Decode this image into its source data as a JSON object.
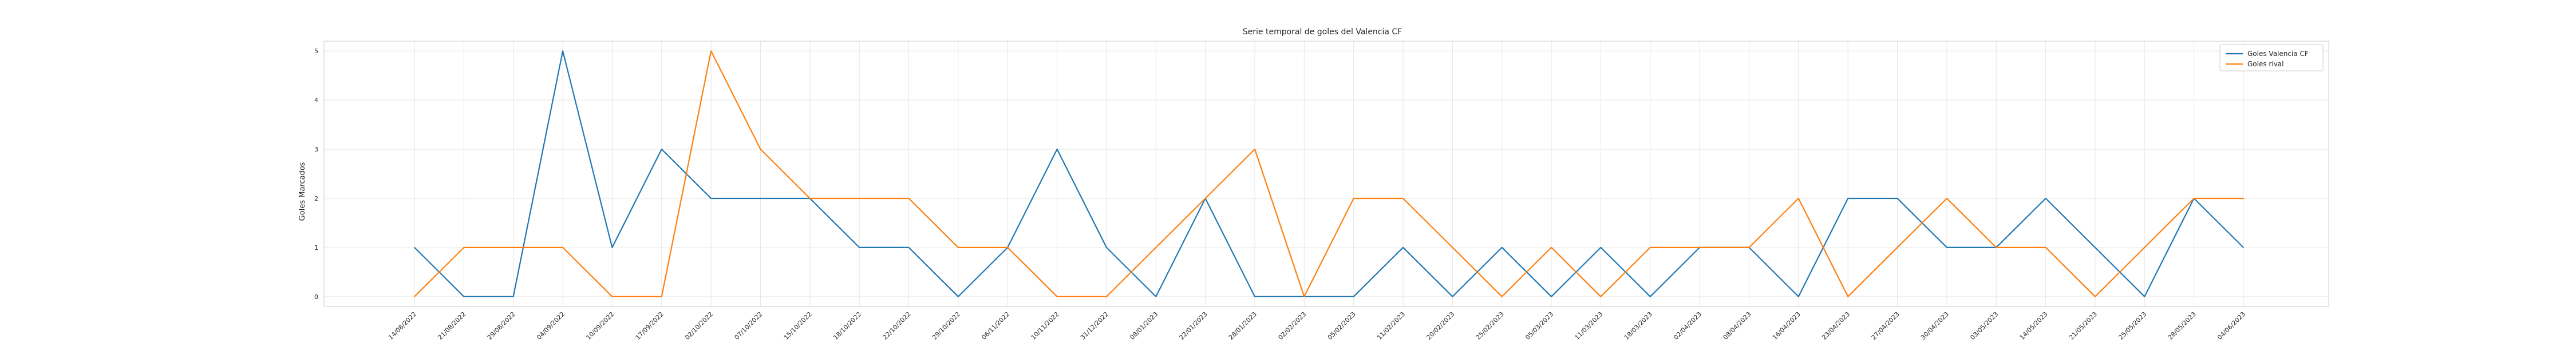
{
  "chart_data": {
    "type": "line",
    "title": "Serie temporal de goles del Valencia CF",
    "xlabel": "",
    "ylabel": "Goles Marcados",
    "ylim": [
      -0.2,
      5.2
    ],
    "yticks": [
      0,
      1,
      2,
      3,
      4,
      5
    ],
    "grid": true,
    "legend_position": "top-right",
    "categories": [
      "14/08/2022",
      "21/08/2022",
      "29/08/2022",
      "04/09/2022",
      "10/09/2022",
      "17/09/2022",
      "02/10/2022",
      "07/10/2022",
      "15/10/2022",
      "18/10/2022",
      "22/10/2022",
      "29/10/2022",
      "06/11/2022",
      "10/11/2022",
      "31/12/2022",
      "08/01/2023",
      "22/01/2023",
      "28/01/2023",
      "02/02/2023",
      "05/02/2023",
      "11/02/2023",
      "20/02/2023",
      "25/02/2023",
      "05/03/2023",
      "11/03/2023",
      "18/03/2023",
      "02/04/2023",
      "08/04/2023",
      "16/04/2023",
      "23/04/2023",
      "27/04/2023",
      "30/04/2023",
      "03/05/2023",
      "14/05/2023",
      "21/05/2023",
      "25/05/2023",
      "28/05/2023",
      "04/06/2023"
    ],
    "series": [
      {
        "name": "Goles Valencia CF",
        "color": "#1f77b4",
        "values": [
          1,
          0,
          0,
          5,
          1,
          3,
          2,
          2,
          2,
          1,
          1,
          0,
          1,
          3,
          1,
          0,
          2,
          0,
          0,
          0,
          1,
          0,
          1,
          0,
          1,
          0,
          1,
          1,
          0,
          2,
          2,
          1,
          1,
          2,
          1,
          0,
          2,
          1
        ]
      },
      {
        "name": "Goles rival",
        "color": "#ff7f0e",
        "values": [
          0,
          1,
          1,
          1,
          0,
          0,
          5,
          3,
          2,
          2,
          2,
          1,
          1,
          0,
          0,
          1,
          2,
          3,
          0,
          2,
          2,
          1,
          0,
          1,
          0,
          1,
          1,
          1,
          2,
          0,
          1,
          2,
          1,
          1,
          0,
          1,
          2,
          2
        ]
      }
    ]
  }
}
